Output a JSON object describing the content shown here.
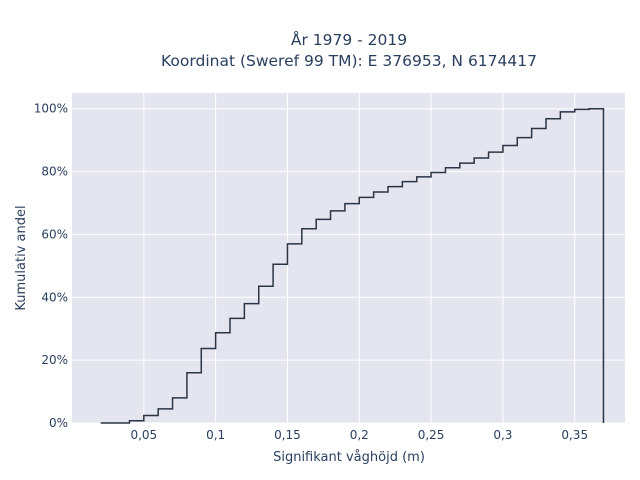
{
  "chart_data": {
    "type": "line",
    "line_shape": "step",
    "title": [
      "År 1979 - 2019",
      "Koordinat (Sweref 99 TM): E 376953, N 6174417"
    ],
    "xlabel": "Signifikant våghöjd (m)",
    "ylabel": "Kumulativ andel",
    "xlim": [
      0.0,
      0.385
    ],
    "ylim": [
      0,
      1.05
    ],
    "x_ticks": [
      0.05,
      0.1,
      0.15,
      0.2,
      0.25,
      0.3,
      0.35
    ],
    "x_tick_labels": [
      "0,05",
      "0,1",
      "0,15",
      "0,2",
      "0,25",
      "0,3",
      "0,35"
    ],
    "y_ticks": [
      0,
      0.2,
      0.4,
      0.6,
      0.8,
      1.0
    ],
    "y_tick_labels": [
      "0%",
      "20%",
      "40%",
      "60%",
      "80%",
      "100%"
    ],
    "grid": true,
    "background": "#e5e5f0",
    "line_color": "#2a3545",
    "x": [
      0.02,
      0.04,
      0.05,
      0.06,
      0.07,
      0.08,
      0.09,
      0.1,
      0.11,
      0.12,
      0.13,
      0.14,
      0.15,
      0.16,
      0.17,
      0.18,
      0.19,
      0.2,
      0.21,
      0.22,
      0.23,
      0.24,
      0.25,
      0.26,
      0.27,
      0.28,
      0.29,
      0.3,
      0.31,
      0.32,
      0.33,
      0.34,
      0.35,
      0.36,
      0.37,
      0.37
    ],
    "y": [
      0.0,
      0.007,
      0.024,
      0.045,
      0.08,
      0.16,
      0.237,
      0.287,
      0.333,
      0.38,
      0.435,
      0.505,
      0.57,
      0.618,
      0.648,
      0.675,
      0.698,
      0.718,
      0.735,
      0.752,
      0.768,
      0.783,
      0.797,
      0.812,
      0.827,
      0.843,
      0.862,
      0.883,
      0.908,
      0.937,
      0.968,
      0.99,
      0.998,
      1.0,
      1.0,
      0.0
    ]
  }
}
